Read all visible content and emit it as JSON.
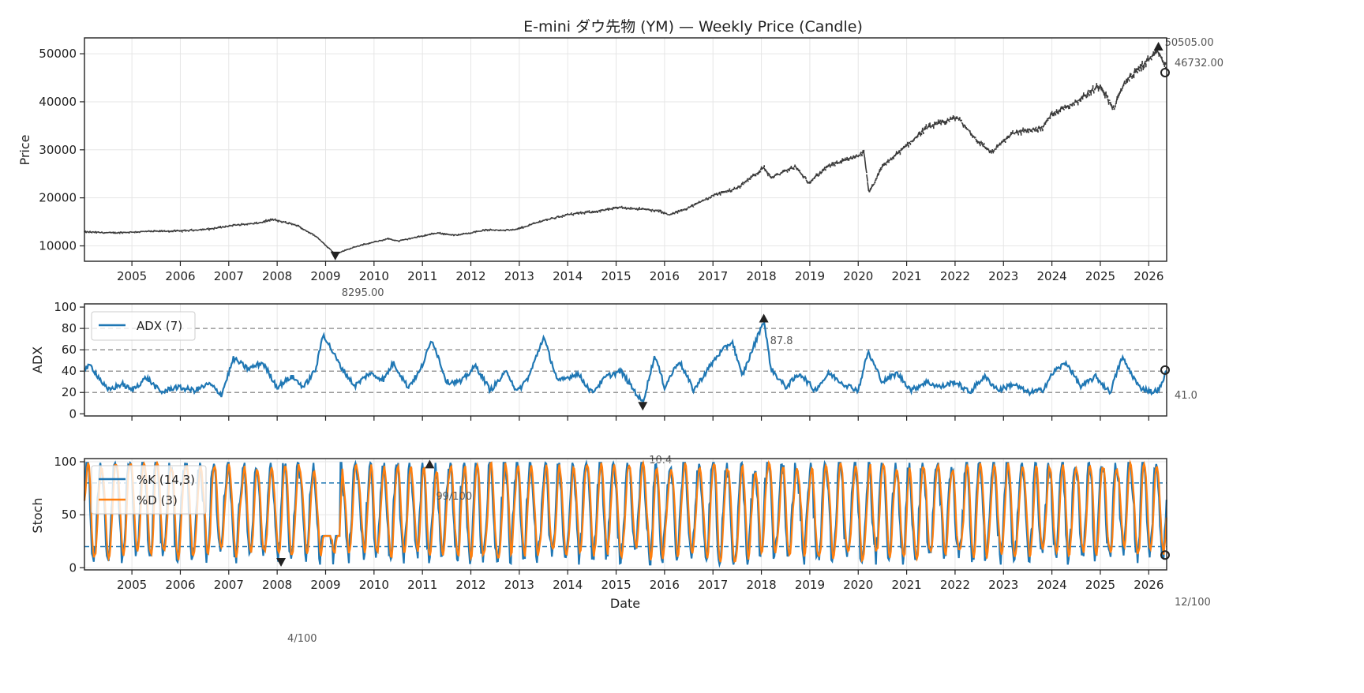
{
  "chart_data": [
    {
      "type": "line",
      "panel": "price",
      "title": "E-mini ダウ先物 (YM) — Weekly Price (Candle)",
      "xlabel": "",
      "ylabel": "Price",
      "xlim": [
        2004.02,
        2026.37
      ],
      "ylim": [
        6800,
        53300
      ],
      "yticks": [
        10000,
        20000,
        30000,
        40000,
        50000
      ],
      "xticks": [
        2005,
        2006,
        2007,
        2008,
        2009,
        2010,
        2011,
        2012,
        2013,
        2014,
        2015,
        2016,
        2017,
        2018,
        2019,
        2020,
        2021,
        2022,
        2023,
        2024,
        2025,
        2026
      ],
      "grid": true,
      "color": "#3a3a3a",
      "anchors": {
        "x": [
          2004.02,
          2004.6,
          2005.3,
          2006.0,
          2006.6,
          2007.1,
          2007.6,
          2007.9,
          2008.4,
          2008.8,
          2009.2,
          2009.6,
          2010.3,
          2010.5,
          2011.3,
          2011.7,
          2012.3,
          2012.9,
          2013.5,
          2014.0,
          2014.6,
          2015.1,
          2015.6,
          2015.9,
          2016.1,
          2016.6,
          2017.0,
          2017.5,
          2018.05,
          2018.2,
          2018.7,
          2018.97,
          2019.4,
          2019.8,
          2020.12,
          2020.22,
          2020.5,
          2020.9,
          2021.4,
          2021.9,
          2022.05,
          2022.45,
          2022.75,
          2023.2,
          2023.8,
          2024.0,
          2024.5,
          2025.0,
          2025.27,
          2025.5,
          2026.0,
          2026.2,
          2026.37
        ],
        "y": [
          12900,
          12700,
          13000,
          13100,
          13500,
          14300,
          14700,
          15500,
          14300,
          12000,
          8295,
          9800,
          11500,
          11000,
          12700,
          12200,
          13300,
          13300,
          15300,
          16500,
          17200,
          18000,
          17600,
          17200,
          16400,
          18400,
          20500,
          22000,
          26300,
          24200,
          26500,
          23200,
          26700,
          28000,
          29400,
          21000,
          26500,
          30000,
          34500,
          36300,
          36700,
          32000,
          29500,
          33500,
          34500,
          37500,
          40000,
          43500,
          38500,
          44000,
          48800,
          50505,
          46732
        ]
      },
      "annotations": [
        {
          "label": "50505.00",
          "type": "max",
          "x": 2026.2,
          "y": 50505
        },
        {
          "label": "46732.00",
          "type": "last",
          "x": 2026.37,
          "y": 46732
        },
        {
          "label": "8295.00",
          "type": "min",
          "x": 2009.2,
          "y": 8295
        }
      ]
    },
    {
      "type": "line",
      "panel": "adx",
      "xlabel": "",
      "ylabel": "ADX",
      "xlim": [
        2004.02,
        2026.37
      ],
      "ylim": [
        -2,
        103
      ],
      "yticks": [
        0,
        20,
        40,
        60,
        80,
        100
      ],
      "hlines": [
        20,
        40,
        60,
        80
      ],
      "grid": true,
      "legend": {
        "position": "upper-left",
        "entries": [
          "ADX (7)"
        ]
      },
      "series": [
        {
          "name": "ADX (7)",
          "color": "#1f77b4"
        }
      ],
      "anchors": {
        "x": [
          2004.02,
          2004.15,
          2004.5,
          2004.8,
          2005.0,
          2005.3,
          2005.6,
          2005.9,
          2006.3,
          2006.6,
          2006.85,
          2007.1,
          2007.4,
          2007.7,
          2008.0,
          2008.3,
          2008.55,
          2008.8,
          2008.95,
          2009.3,
          2009.6,
          2009.9,
          2010.2,
          2010.4,
          2010.7,
          2010.95,
          2011.2,
          2011.5,
          2011.8,
          2012.1,
          2012.4,
          2012.75,
          2012.95,
          2013.2,
          2013.5,
          2013.8,
          2014.2,
          2014.5,
          2014.8,
          2015.1,
          2015.4,
          2015.55,
          2015.8,
          2016.0,
          2016.3,
          2016.6,
          2016.9,
          2017.1,
          2017.4,
          2017.6,
          2017.9,
          2018.05,
          2018.2,
          2018.5,
          2018.8,
          2019.1,
          2019.4,
          2019.7,
          2020.0,
          2020.2,
          2020.5,
          2020.8,
          2021.1,
          2021.4,
          2021.7,
          2022.0,
          2022.3,
          2022.6,
          2022.9,
          2023.2,
          2023.5,
          2023.8,
          2024.05,
          2024.3,
          2024.6,
          2024.9,
          2025.2,
          2025.45,
          2025.8,
          2026.1,
          2026.25,
          2026.37
        ],
        "y": [
          42,
          45,
          22,
          28,
          22,
          34,
          20,
          25,
          22,
          28,
          18,
          52,
          42,
          48,
          25,
          35,
          25,
          42,
          75,
          45,
          26,
          38,
          32,
          48,
          25,
          40,
          70,
          30,
          30,
          45,
          22,
          40,
          20,
          35,
          72,
          30,
          38,
          20,
          35,
          40,
          20,
          10.4,
          55,
          25,
          50,
          22,
          42,
          55,
          68,
          35,
          70,
          87.8,
          42,
          25,
          38,
          22,
          38,
          28,
          22,
          58,
          30,
          38,
          22,
          30,
          25,
          30,
          20,
          35,
          22,
          28,
          20,
          22,
          40,
          48,
          25,
          35,
          20,
          53,
          25,
          20,
          25,
          41
        ]
      },
      "annotations": [
        {
          "label": "87.8",
          "type": "max",
          "x": 2018.05,
          "y": 87.8
        },
        {
          "label": "10.4",
          "type": "min",
          "x": 2015.55,
          "y": 10.4
        },
        {
          "label": "41.0",
          "type": "last",
          "x": 2026.37,
          "y": 41.0
        }
      ]
    },
    {
      "type": "line",
      "panel": "stoch",
      "xlabel": "Date",
      "ylabel": "Stoch",
      "xlim": [
        2004.02,
        2026.37
      ],
      "ylim": [
        -2,
        103
      ],
      "yticks": [
        0,
        50,
        100
      ],
      "hlines": [
        20,
        80
      ],
      "grid": true,
      "xticks": [
        2005,
        2006,
        2007,
        2008,
        2009,
        2010,
        2011,
        2012,
        2013,
        2014,
        2015,
        2016,
        2017,
        2018,
        2019,
        2020,
        2021,
        2022,
        2023,
        2024,
        2025,
        2026
      ],
      "legend": {
        "position": "upper-left",
        "entries": [
          "%K (14,3)",
          "%D (3)"
        ]
      },
      "series": [
        {
          "name": "%K (14,3)",
          "color": "#1f77b4"
        },
        {
          "name": "%D (3)",
          "color": "#ff7f0e"
        }
      ],
      "annotations": [
        {
          "label": "99/100",
          "type": "max",
          "x": 2011.15,
          "y": 99
        },
        {
          "label": "4/100",
          "type": "min",
          "x": 2008.08,
          "y": 4
        },
        {
          "label": "12/100",
          "type": "last",
          "x": 2026.37,
          "y": 12
        }
      ]
    }
  ],
  "figure": {
    "title": "E-mini ダウ先物 (YM) — Weekly Price (Candle)",
    "price_ylabel": "Price",
    "adx_ylabel": "ADX",
    "stoch_ylabel": "Stoch",
    "xlabel": "Date",
    "adx_legend": "ADX (7)",
    "stoch_legend_k": "%K (14,3)",
    "stoch_legend_d": "%D (3)"
  }
}
